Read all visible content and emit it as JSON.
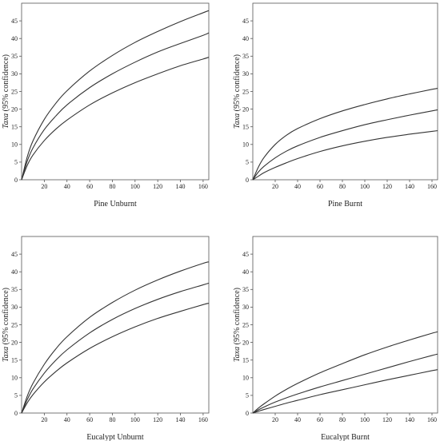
{
  "chart_data": [
    {
      "type": "line",
      "xlabel": "Pine Unburnt",
      "ylabel_italic": "Taxa",
      "ylabel_rest": " (95% confidence)",
      "xlim": [
        0,
        165
      ],
      "ylim": [
        0,
        50
      ],
      "xticks": [
        20,
        40,
        60,
        80,
        100,
        120,
        140,
        160
      ],
      "yticks": [
        0,
        5,
        10,
        15,
        20,
        25,
        30,
        35,
        40,
        45
      ],
      "grid": false,
      "line_color": "#333333",
      "x": [
        0,
        5,
        10,
        20,
        30,
        40,
        60,
        80,
        100,
        120,
        140,
        160,
        165
      ],
      "series": [
        {
          "values": [
            0,
            5.3,
            9.0,
            14.2,
            18.0,
            21.2,
            26.1,
            30.0,
            33.3,
            36.2,
            38.6,
            40.9,
            41.6
          ]
        },
        {
          "values": [
            0,
            6.5,
            11.0,
            17.1,
            21.6,
            25.2,
            30.8,
            35.2,
            38.9,
            42.0,
            44.8,
            47.3,
            47.9
          ]
        },
        {
          "values": [
            0,
            4.1,
            7.0,
            11.1,
            14.3,
            16.9,
            21.2,
            24.6,
            27.5,
            30.0,
            32.3,
            34.2,
            34.7
          ]
        }
      ]
    },
    {
      "type": "line",
      "xlabel": "Pine Burnt",
      "ylabel_italic": "Taxa",
      "ylabel_rest": " (95% confidence)",
      "xlim": [
        0,
        165
      ],
      "ylim": [
        0,
        50
      ],
      "xticks": [
        20,
        40,
        60,
        80,
        100,
        120,
        140,
        160
      ],
      "yticks": [
        0,
        5,
        10,
        15,
        20,
        25,
        30,
        35,
        40,
        45
      ],
      "grid": false,
      "line_color": "#333333",
      "x": [
        0,
        5,
        10,
        20,
        30,
        40,
        60,
        80,
        100,
        120,
        140,
        160,
        165
      ],
      "series": [
        {
          "values": [
            0,
            2.2,
            3.8,
            6.2,
            8.1,
            9.6,
            12.0,
            13.9,
            15.6,
            17.0,
            18.3,
            19.5,
            19.8
          ]
        },
        {
          "values": [
            0,
            3.6,
            6.3,
            10.0,
            12.6,
            14.5,
            17.3,
            19.5,
            21.3,
            22.9,
            24.3,
            25.6,
            25.9
          ]
        },
        {
          "values": [
            0,
            1.0,
            2.0,
            3.5,
            4.8,
            6.0,
            8.0,
            9.6,
            10.9,
            12.0,
            12.9,
            13.7,
            13.9
          ]
        }
      ]
    },
    {
      "type": "line",
      "xlabel": "Eucalypt Unburnt",
      "ylabel_italic": "Taxa",
      "ylabel_rest": " (95% confidence)",
      "xlim": [
        0,
        165
      ],
      "ylim": [
        0,
        50
      ],
      "xticks": [
        20,
        40,
        60,
        80,
        100,
        120,
        140,
        160
      ],
      "yticks": [
        0,
        5,
        10,
        15,
        20,
        25,
        30,
        35,
        40,
        45
      ],
      "grid": false,
      "line_color": "#333333",
      "x": [
        0,
        5,
        10,
        20,
        30,
        40,
        60,
        80,
        100,
        120,
        140,
        160,
        165
      ],
      "series": [
        {
          "values": [
            0,
            3.8,
            6.8,
            11.3,
            14.9,
            17.9,
            22.7,
            26.5,
            29.6,
            32.2,
            34.4,
            36.3,
            36.8
          ]
        },
        {
          "values": [
            0,
            4.8,
            8.4,
            13.8,
            18.1,
            21.6,
            27.1,
            31.3,
            34.8,
            37.7,
            40.2,
            42.4,
            42.8
          ]
        },
        {
          "values": [
            0,
            2.9,
            5.2,
            8.8,
            11.7,
            14.2,
            18.3,
            21.6,
            24.4,
            26.8,
            28.8,
            30.7,
            31.1
          ]
        }
      ]
    },
    {
      "type": "line",
      "xlabel": "Eucalypt Burnt",
      "ylabel_italic": "Taxa",
      "ylabel_rest": " (95% confidence)",
      "xlim": [
        0,
        165
      ],
      "ylim": [
        0,
        50
      ],
      "xticks": [
        20,
        40,
        60,
        80,
        100,
        120,
        140,
        160
      ],
      "yticks": [
        0,
        5,
        10,
        15,
        20,
        25,
        30,
        35,
        40,
        45
      ],
      "grid": false,
      "line_color": "#333333",
      "x": [
        0,
        5,
        10,
        20,
        30,
        40,
        60,
        80,
        100,
        120,
        140,
        160,
        165
      ],
      "series": [
        {
          "values": [
            0,
            0.9,
            1.7,
            3.1,
            4.3,
            5.4,
            7.4,
            9.2,
            11.0,
            12.8,
            14.6,
            16.3,
            16.7
          ]
        },
        {
          "values": [
            0,
            1.4,
            2.6,
            4.8,
            6.7,
            8.4,
            11.4,
            14.0,
            16.5,
            18.7,
            20.7,
            22.6,
            23.0
          ]
        },
        {
          "values": [
            0,
            0.5,
            1.0,
            1.9,
            2.8,
            3.6,
            5.2,
            6.6,
            8.0,
            9.4,
            10.7,
            12.0,
            12.3
          ]
        }
      ]
    }
  ]
}
